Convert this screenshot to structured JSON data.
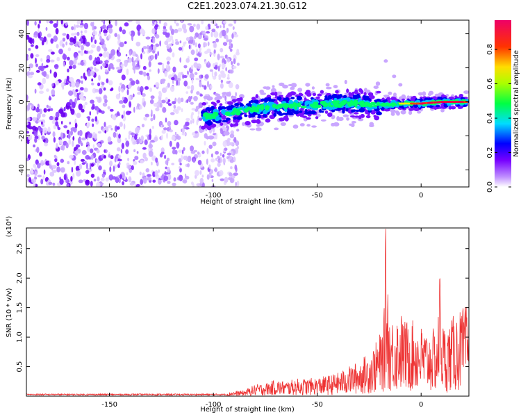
{
  "title": "C2E1.2023.074.21.30.G12",
  "chart_data": [
    {
      "type": "heatmap",
      "name": "spectrogram",
      "xlabel": "Height of straight line (km)",
      "ylabel": "Frequency (Hz)",
      "xlim": [
        -190,
        23
      ],
      "ylim": [
        -50,
        48
      ],
      "xticks": [
        "-150",
        "-100",
        "-50",
        "0"
      ],
      "xtick_values": [
        -150,
        -100,
        -50,
        0
      ],
      "yticks": [
        "-40",
        "-20",
        "0",
        "20",
        "40"
      ],
      "ytick_values": [
        -40,
        -20,
        0,
        20,
        40
      ],
      "noise_region_x": [
        -190,
        -90
      ],
      "track": {
        "x": [
          -105,
          -90,
          -80,
          -70,
          -60,
          -50,
          -40,
          -30,
          -20,
          -10,
          0,
          10,
          22
        ],
        "y": [
          -9,
          -6,
          -4,
          -3,
          -2,
          -2,
          -1,
          -1,
          -2,
          -1,
          -1,
          0,
          0
        ]
      },
      "colorbar": {
        "label": "Normalized spectral amplitude",
        "ticks": [
          "0.0",
          "0.2",
          "0.4",
          "0.6",
          "0.8"
        ],
        "tick_values": [
          0,
          0.2,
          0.4,
          0.6,
          0.8
        ],
        "range": [
          0,
          0.97
        ]
      }
    },
    {
      "type": "line",
      "name": "snr",
      "xlabel": "Height of straight line (km)",
      "ylabel": "SNR (10 * v/v)",
      "yunit": "(x10⁴)",
      "xlim": [
        -190,
        23
      ],
      "ylim": [
        0,
        2.85
      ],
      "xticks": [
        "-150",
        "-100",
        "-50",
        "0"
      ],
      "xtick_values": [
        -150,
        -100,
        -50,
        0
      ],
      "yticks": [
        "0.5",
        "1.0",
        "1.5",
        "2.0",
        "2.5"
      ],
      "ytick_values": [
        0.5,
        1.0,
        1.5,
        2.0,
        2.5
      ],
      "color": "#ee3333",
      "series": [
        {
          "x": [
            -190,
            -170,
            -150,
            -130,
            -110,
            -95,
            -90,
            -85,
            -80,
            -75,
            -70,
            -65,
            -60,
            -55,
            -50,
            -45,
            -40,
            -35,
            -30,
            -25,
            -22,
            -20,
            -18,
            -17,
            -15,
            -12,
            -10,
            -8,
            -5,
            -2,
            0,
            3,
            6,
            8,
            9,
            10,
            12,
            15,
            18,
            20,
            22
          ],
          "y": [
            0.03,
            0.03,
            0.03,
            0.04,
            0.04,
            0.05,
            0.08,
            0.1,
            0.2,
            0.22,
            0.28,
            0.25,
            0.3,
            0.3,
            0.32,
            0.35,
            0.4,
            0.5,
            0.6,
            0.75,
            0.9,
            1.05,
            1.25,
            2.85,
            1.3,
            1.4,
            1.45,
            1.3,
            1.3,
            1.25,
            1.2,
            1.1,
            1.15,
            1.2,
            2.05,
            1.3,
            1.15,
            1.35,
            1.45,
            1.5,
            1.55
          ]
        }
      ]
    }
  ]
}
